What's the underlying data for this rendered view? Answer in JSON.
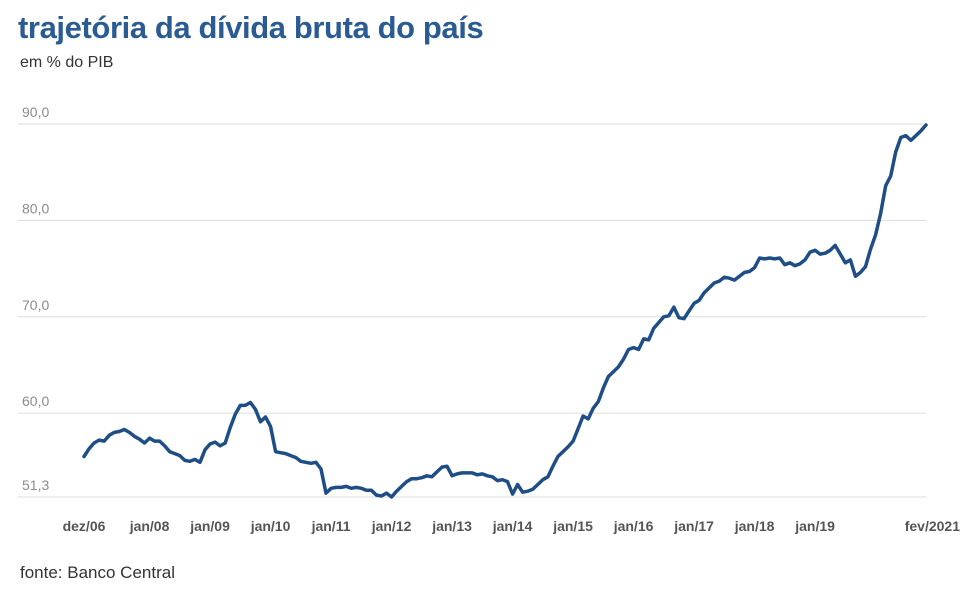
{
  "title": "trajetória da dívida bruta do país",
  "subtitle": "em % do PIB",
  "source": "fonte: Banco Central",
  "colors": {
    "title": "#2a5b92",
    "line": "#1f4e87",
    "grid": "#dddddd"
  },
  "chart_data": {
    "type": "line",
    "title": "trajetória da dívida bruta do país",
    "ylabel": "em % do PIB",
    "xlabel": "",
    "ylim": [
      51.3,
      90.0
    ],
    "yticks": [
      51.3,
      60.0,
      70.0,
      80.0,
      90.0
    ],
    "ytick_labels": [
      "51,3",
      "60,0",
      "70,0",
      "80,0",
      "90,0"
    ],
    "xticks": [
      {
        "label": "dez/06",
        "t": 0
      },
      {
        "label": "jan/08",
        "t": 13
      },
      {
        "label": "jan/09",
        "t": 25
      },
      {
        "label": "jan/10",
        "t": 37
      },
      {
        "label": "jan/11",
        "t": 49
      },
      {
        "label": "jan/12",
        "t": 61
      },
      {
        "label": "jan/13",
        "t": 73
      },
      {
        "label": "jan/14",
        "t": 85
      },
      {
        "label": "jan/15",
        "t": 97
      },
      {
        "label": "jan/16",
        "t": 109
      },
      {
        "label": "jan/17",
        "t": 121
      },
      {
        "label": "jan/18",
        "t": 133
      },
      {
        "label": "jan/19",
        "t": 145
      },
      {
        "label": "fev/2021",
        "t": 170
      }
    ],
    "grid": true,
    "legend": "none",
    "series": [
      {
        "values": [
          55.5,
          56.3,
          56.9,
          57.2,
          57.1,
          57.7,
          58.0,
          58.1,
          58.3,
          58.0,
          57.6,
          57.3,
          56.9,
          57.4,
          57.1,
          57.1,
          56.6,
          56.0,
          55.8,
          55.6,
          55.1,
          55.0,
          55.2,
          54.9,
          56.2,
          56.8,
          57.0,
          56.6,
          56.9,
          58.5,
          59.9,
          60.8,
          60.8,
          61.1,
          60.4,
          59.1,
          59.6,
          58.6,
          56.0,
          55.9,
          55.8,
          55.6,
          55.4,
          55.0,
          54.9,
          54.8,
          54.9,
          54.2,
          51.7,
          52.2,
          52.3,
          52.3,
          52.4,
          52.2,
          52.3,
          52.2,
          52.0,
          52.0,
          51.5,
          51.4,
          51.7,
          51.3,
          51.9,
          52.4,
          52.9,
          53.2,
          53.2,
          53.3,
          53.5,
          53.4,
          53.9,
          54.4,
          54.5,
          53.5,
          53.7,
          53.8,
          53.8,
          53.8,
          53.6,
          53.7,
          53.5,
          53.4,
          53.0,
          53.1,
          52.9,
          51.6,
          52.6,
          51.8,
          51.9,
          52.1,
          52.6,
          53.1,
          53.4,
          54.5,
          55.5,
          56.0,
          56.5,
          57.1,
          58.4,
          59.7,
          59.4,
          60.5,
          61.2,
          62.6,
          63.8,
          64.3,
          64.8,
          65.6,
          66.6,
          66.8,
          66.6,
          67.7,
          67.6,
          68.8,
          69.4,
          70.0,
          70.1,
          71.0,
          69.9,
          69.8,
          70.6,
          71.4,
          71.7,
          72.5,
          73.0,
          73.5,
          73.7,
          74.1,
          74.0,
          73.8,
          74.2,
          74.6,
          74.7,
          75.1,
          76.1,
          76.0,
          76.1,
          76.0,
          76.1,
          75.4,
          75.6,
          75.3,
          75.5,
          75.9,
          76.7,
          76.9,
          76.5,
          76.6,
          76.9,
          77.4,
          76.5,
          75.6,
          75.9,
          74.2,
          74.6,
          75.2,
          77.0,
          78.5,
          80.7,
          83.6,
          84.6,
          87.1,
          88.6,
          88.8,
          88.3,
          88.8,
          89.3,
          89.9
        ]
      }
    ]
  }
}
